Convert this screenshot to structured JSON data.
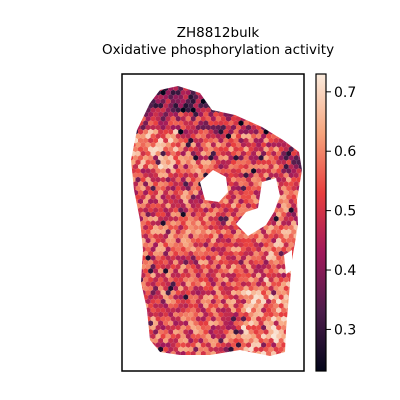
{
  "figure": {
    "title_line1": "ZH8812bulk",
    "title_line2": "Oxidative phosphorylation activity"
  },
  "colorbar": {
    "colormap": "rocket",
    "min": 0.23,
    "max": 0.73,
    "ticks": [
      "0.3",
      "0.4",
      "0.5",
      "0.6",
      "0.7"
    ],
    "tick_values": [
      0.3,
      0.4,
      0.5,
      0.6,
      0.7
    ]
  },
  "map": {
    "description_colors": {
      "background": "#ffffff",
      "frame": "#000000"
    }
  }
}
